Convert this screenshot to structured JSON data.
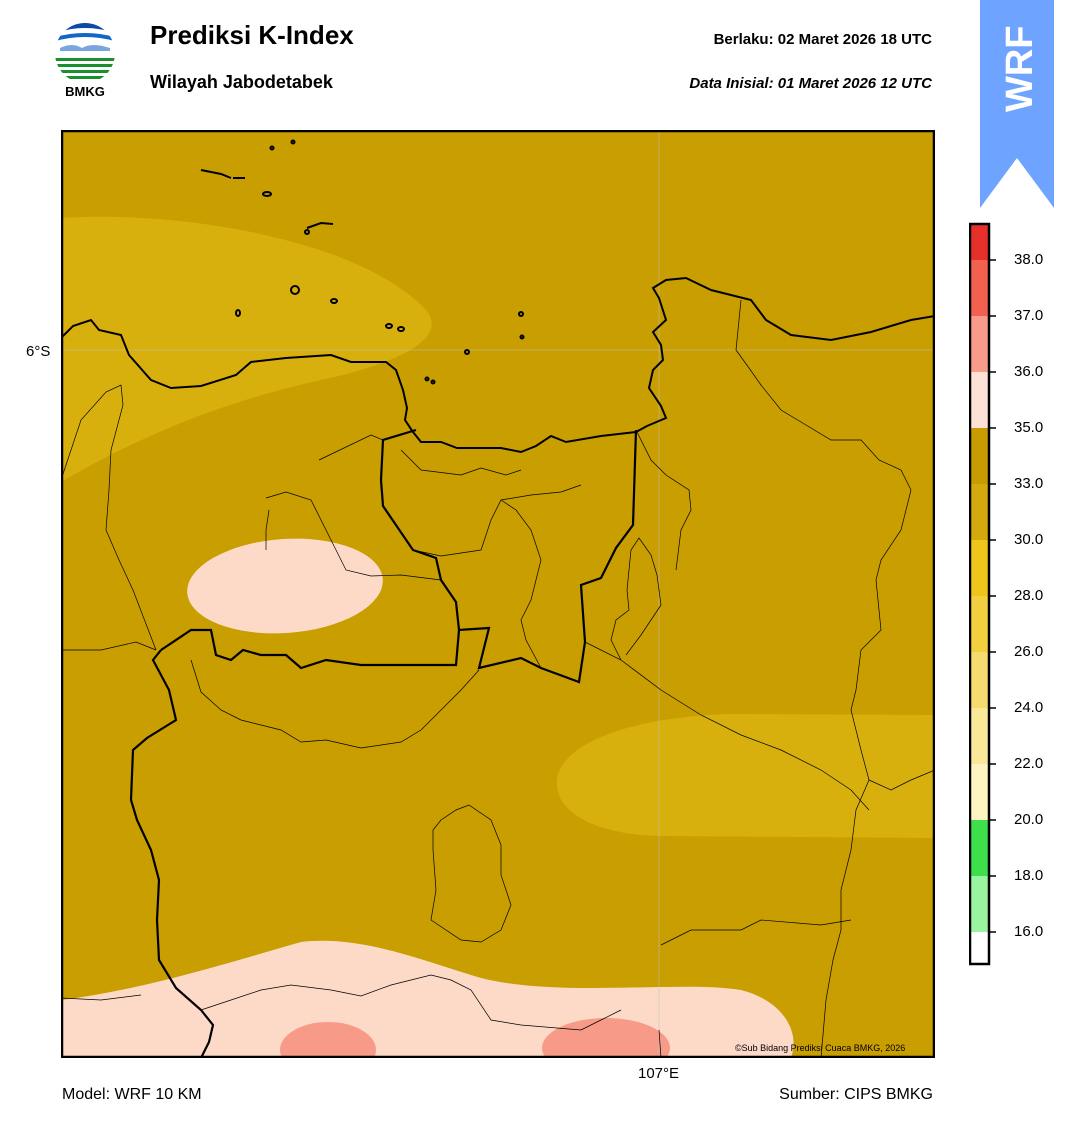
{
  "header": {
    "logo_text": "BMKG",
    "title": "Prediksi K-Index",
    "subtitle": "Wilayah Jabodetabek",
    "valid_time": "Berlaku:  02 Maret 2026 18 UTC",
    "init_time": "Data Inisial:  01 Maret 2026 12 UTC",
    "model_badge": "WRF"
  },
  "map": {
    "lat_label": "6°S",
    "lon_label": "107°E",
    "copyright": "©Sub Bidang Prediksi Cuaca BMKG, 2026"
  },
  "footer": {
    "model": "Model: WRF 10 KM",
    "source": "Sumber: CIPS BMKG"
  },
  "colorbar": {
    "ticks": [
      "38.0",
      "37.0",
      "36.0",
      "35.0",
      "33.0",
      "30.0",
      "28.0",
      "26.0",
      "24.0",
      "22.0",
      "20.0",
      "18.0",
      "16.0"
    ],
    "colors": [
      "#e8302a",
      "#f2604f",
      "#f89b8a",
      "#fde0d6",
      "#c89b00",
      "#d4a90d",
      "#f0c51b",
      "#f2cf3e",
      "#f6dc6f",
      "#f9e898",
      "#fdf4c2",
      "#3de04a",
      "#9af39f",
      "#ffffff"
    ]
  },
  "colors": {
    "k_33_35": "#c89e00",
    "k_30_33": "#d8b00e",
    "k_35_36": "#fddac8",
    "k_36_37": "#f79a87",
    "badge": "#6ea4ff"
  }
}
